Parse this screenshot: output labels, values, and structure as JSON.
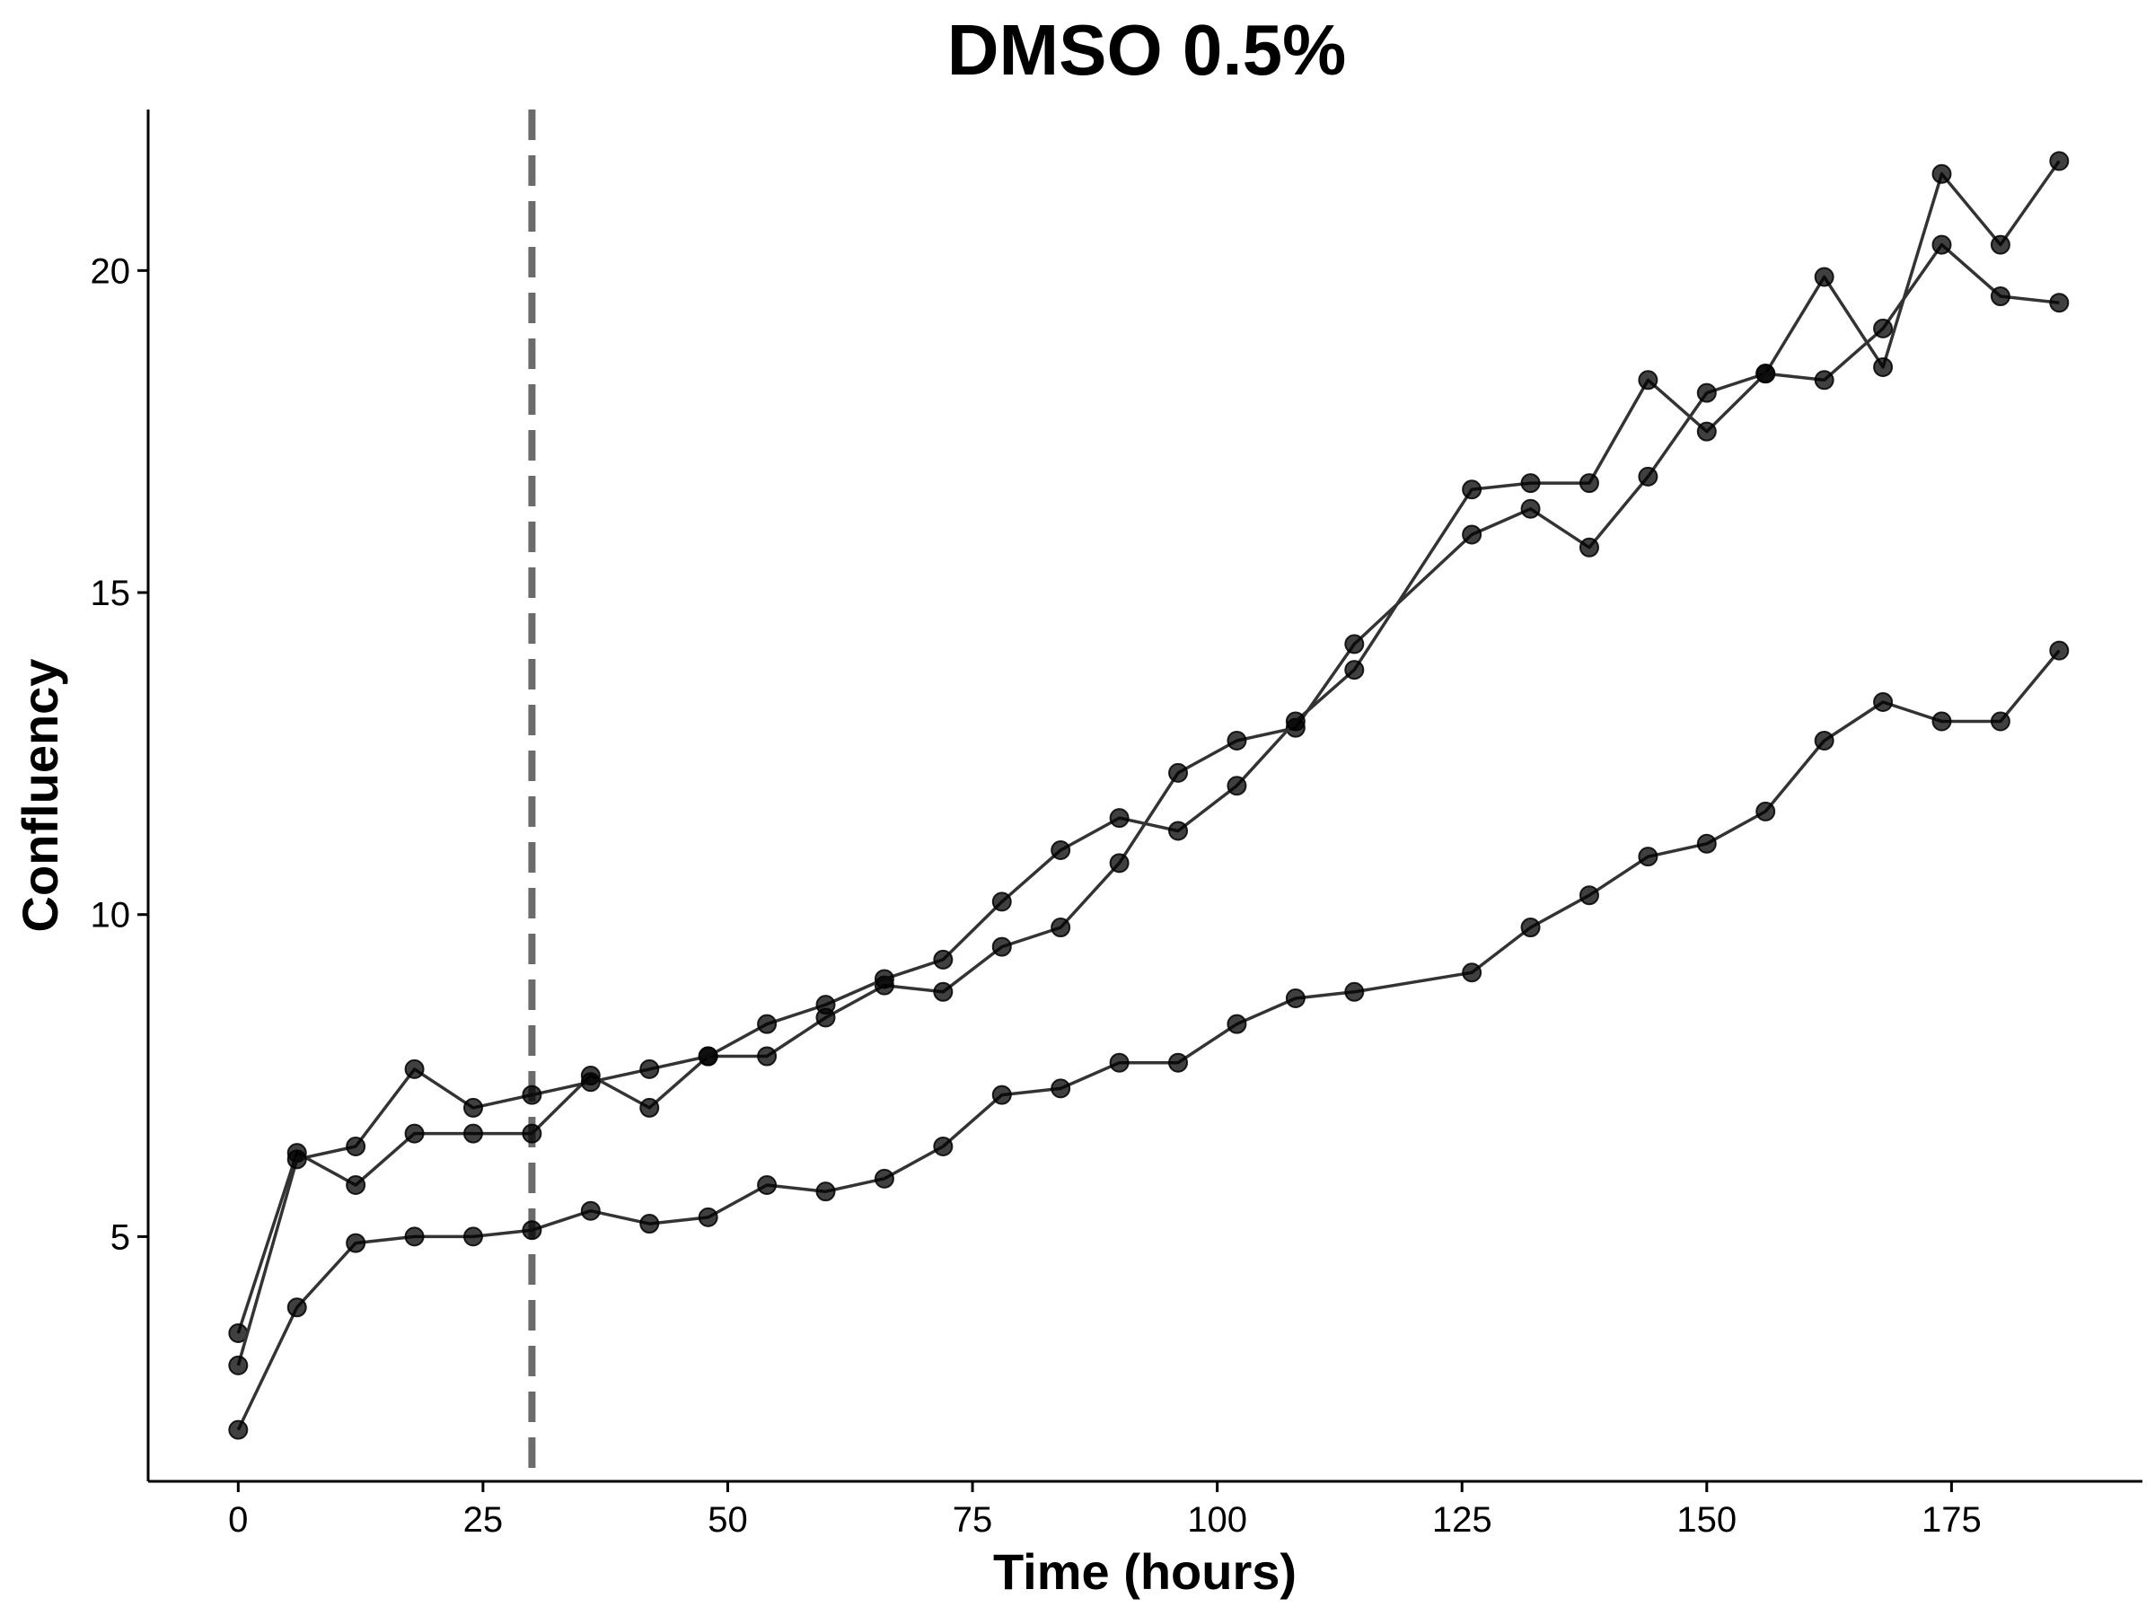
{
  "chart_data": {
    "type": "line",
    "title": "DMSO 0.5%",
    "xlabel": "Time (hours)",
    "ylabel": "Confluency",
    "xlim": [
      -9.2,
      194.5
    ],
    "ylim": [
      1.2,
      22.5
    ],
    "x_ticks": [
      0,
      25,
      50,
      75,
      100,
      125,
      150,
      175
    ],
    "y_ticks": [
      5,
      10,
      15,
      20
    ],
    "grid": false,
    "legend": "none",
    "vline": {
      "x": 30,
      "style": "dashed",
      "color": "#6b6b6b"
    },
    "series": [
      {
        "points": [
          [
            0,
            3.5
          ],
          [
            6,
            6.3
          ],
          [
            12,
            5.8
          ],
          [
            18,
            6.6
          ],
          [
            24,
            6.6
          ],
          [
            30,
            6.6
          ],
          [
            36,
            7.5
          ],
          [
            42,
            7.0
          ],
          [
            48,
            7.8
          ],
          [
            54,
            7.8
          ],
          [
            60,
            8.4
          ],
          [
            66,
            8.9
          ],
          [
            72,
            8.8
          ],
          [
            78,
            9.5
          ],
          [
            84,
            9.8
          ],
          [
            90,
            10.8
          ],
          [
            96,
            12.2
          ],
          [
            102,
            12.7
          ],
          [
            108,
            12.9
          ],
          [
            114,
            14.2
          ],
          [
            126,
            15.9
          ],
          [
            132,
            16.3
          ],
          [
            138,
            15.7
          ],
          [
            144,
            16.8
          ],
          [
            150,
            18.1
          ],
          [
            156,
            18.4
          ],
          [
            162,
            19.9
          ],
          [
            168,
            18.5
          ],
          [
            174,
            21.5
          ],
          [
            180,
            20.4
          ],
          [
            186,
            21.7
          ]
        ]
      },
      {
        "points": [
          [
            0,
            3.0
          ],
          [
            6,
            6.2
          ],
          [
            12,
            6.4
          ],
          [
            18,
            7.6
          ],
          [
            24,
            7.0
          ],
          [
            30,
            7.2
          ],
          [
            36,
            7.4
          ],
          [
            42,
            7.6
          ],
          [
            48,
            7.8
          ],
          [
            54,
            8.3
          ],
          [
            60,
            8.6
          ],
          [
            66,
            9.0
          ],
          [
            72,
            9.3
          ],
          [
            78,
            10.2
          ],
          [
            84,
            11.0
          ],
          [
            90,
            11.5
          ],
          [
            96,
            11.3
          ],
          [
            102,
            12.0
          ],
          [
            108,
            13.0
          ],
          [
            114,
            13.8
          ],
          [
            126,
            16.6
          ],
          [
            132,
            16.7
          ],
          [
            138,
            16.7
          ],
          [
            144,
            18.3
          ],
          [
            150,
            17.5
          ],
          [
            156,
            18.4
          ],
          [
            162,
            18.3
          ],
          [
            168,
            19.1
          ],
          [
            174,
            20.4
          ],
          [
            180,
            19.6
          ],
          [
            186,
            19.5
          ]
        ]
      },
      {
        "points": [
          [
            0,
            2.0
          ],
          [
            6,
            3.9
          ],
          [
            12,
            4.9
          ],
          [
            18,
            5.0
          ],
          [
            24,
            5.0
          ],
          [
            30,
            5.1
          ],
          [
            36,
            5.4
          ],
          [
            42,
            5.2
          ],
          [
            48,
            5.3
          ],
          [
            54,
            5.8
          ],
          [
            60,
            5.7
          ],
          [
            66,
            5.9
          ],
          [
            72,
            6.4
          ],
          [
            78,
            7.2
          ],
          [
            84,
            7.3
          ],
          [
            90,
            7.7
          ],
          [
            96,
            7.7
          ],
          [
            102,
            8.3
          ],
          [
            108,
            8.7
          ],
          [
            114,
            8.8
          ],
          [
            126,
            9.1
          ],
          [
            132,
            9.8
          ],
          [
            138,
            10.3
          ],
          [
            144,
            10.9
          ],
          [
            150,
            11.1
          ],
          [
            156,
            11.6
          ],
          [
            162,
            12.7
          ],
          [
            168,
            13.3
          ],
          [
            174,
            13.0
          ],
          [
            180,
            13.0
          ],
          [
            186,
            14.1
          ]
        ]
      }
    ]
  }
}
